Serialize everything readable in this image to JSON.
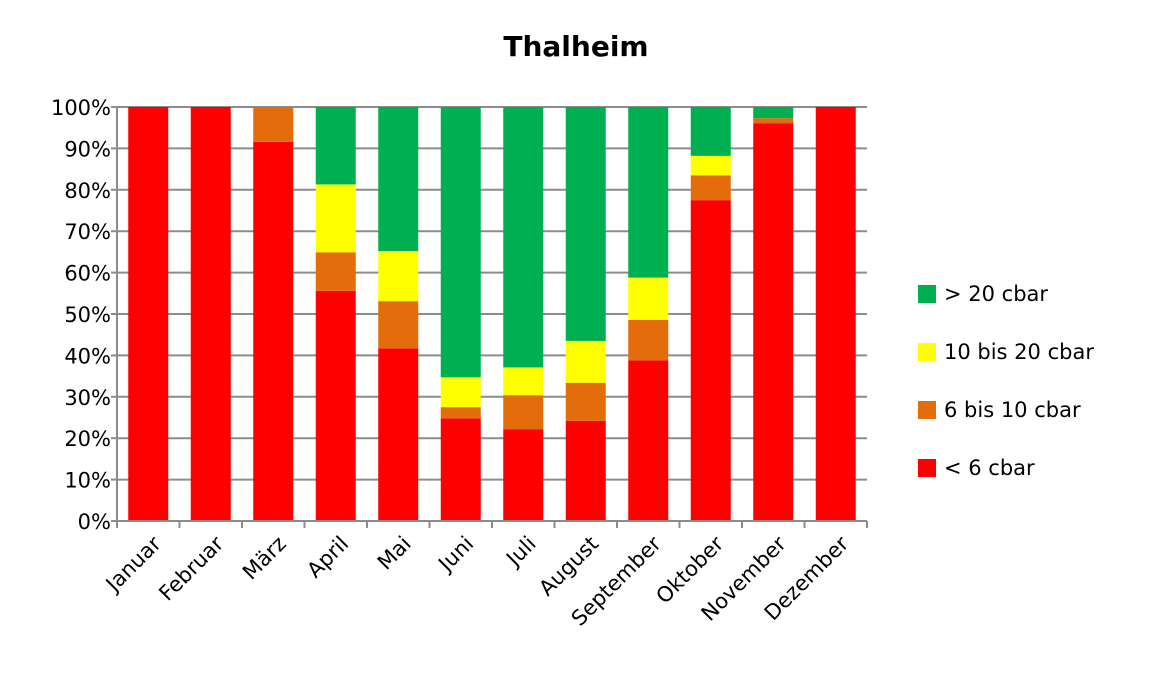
{
  "chart_data": {
    "type": "bar",
    "stacked": true,
    "percent_stacked": true,
    "title": "Thalheim",
    "xlabel": "",
    "ylabel": "",
    "ylim": [
      0,
      100
    ],
    "yticks": [
      "0%",
      "10%",
      "20%",
      "30%",
      "40%",
      "50%",
      "60%",
      "70%",
      "80%",
      "90%",
      "100%"
    ],
    "grid": true,
    "legend_position": "right",
    "categories": [
      "Januar",
      "Februar",
      "März",
      "April",
      "Mai",
      "Juni",
      "Juli",
      "August",
      "September",
      "Oktober",
      "November",
      "Dezember"
    ],
    "series": [
      {
        "name": "< 6 cbar",
        "color": "#ff0000",
        "values": [
          100,
          100,
          91.6,
          55.6,
          41.7,
          24.8,
          22.1,
          24.2,
          38.8,
          77.5,
          96.1,
          100
        ]
      },
      {
        "name": "6 bis 10 cbar",
        "color": "#e46c0a",
        "values": [
          0,
          0,
          8.4,
          9.3,
          11.4,
          2.7,
          8.3,
          9.2,
          9.8,
          6.0,
          1.2,
          0
        ]
      },
      {
        "name": "10 bis 20 cbar",
        "color": "#ffff00",
        "values": [
          0,
          0,
          0,
          16.4,
          12.1,
          7.2,
          6.7,
          10.1,
          10.2,
          4.7,
          0,
          0
        ]
      },
      {
        "name": "> 20 cbar",
        "color": "#00b050",
        "values": [
          0,
          0,
          0,
          18.7,
          34.8,
          65.3,
          62.9,
          56.5,
          41.2,
          11.8,
          2.7,
          0
        ]
      }
    ],
    "legend_order": [
      "> 20 cbar",
      "10 bis 20 cbar",
      "6 bis 10 cbar",
      "< 6 cbar"
    ]
  }
}
